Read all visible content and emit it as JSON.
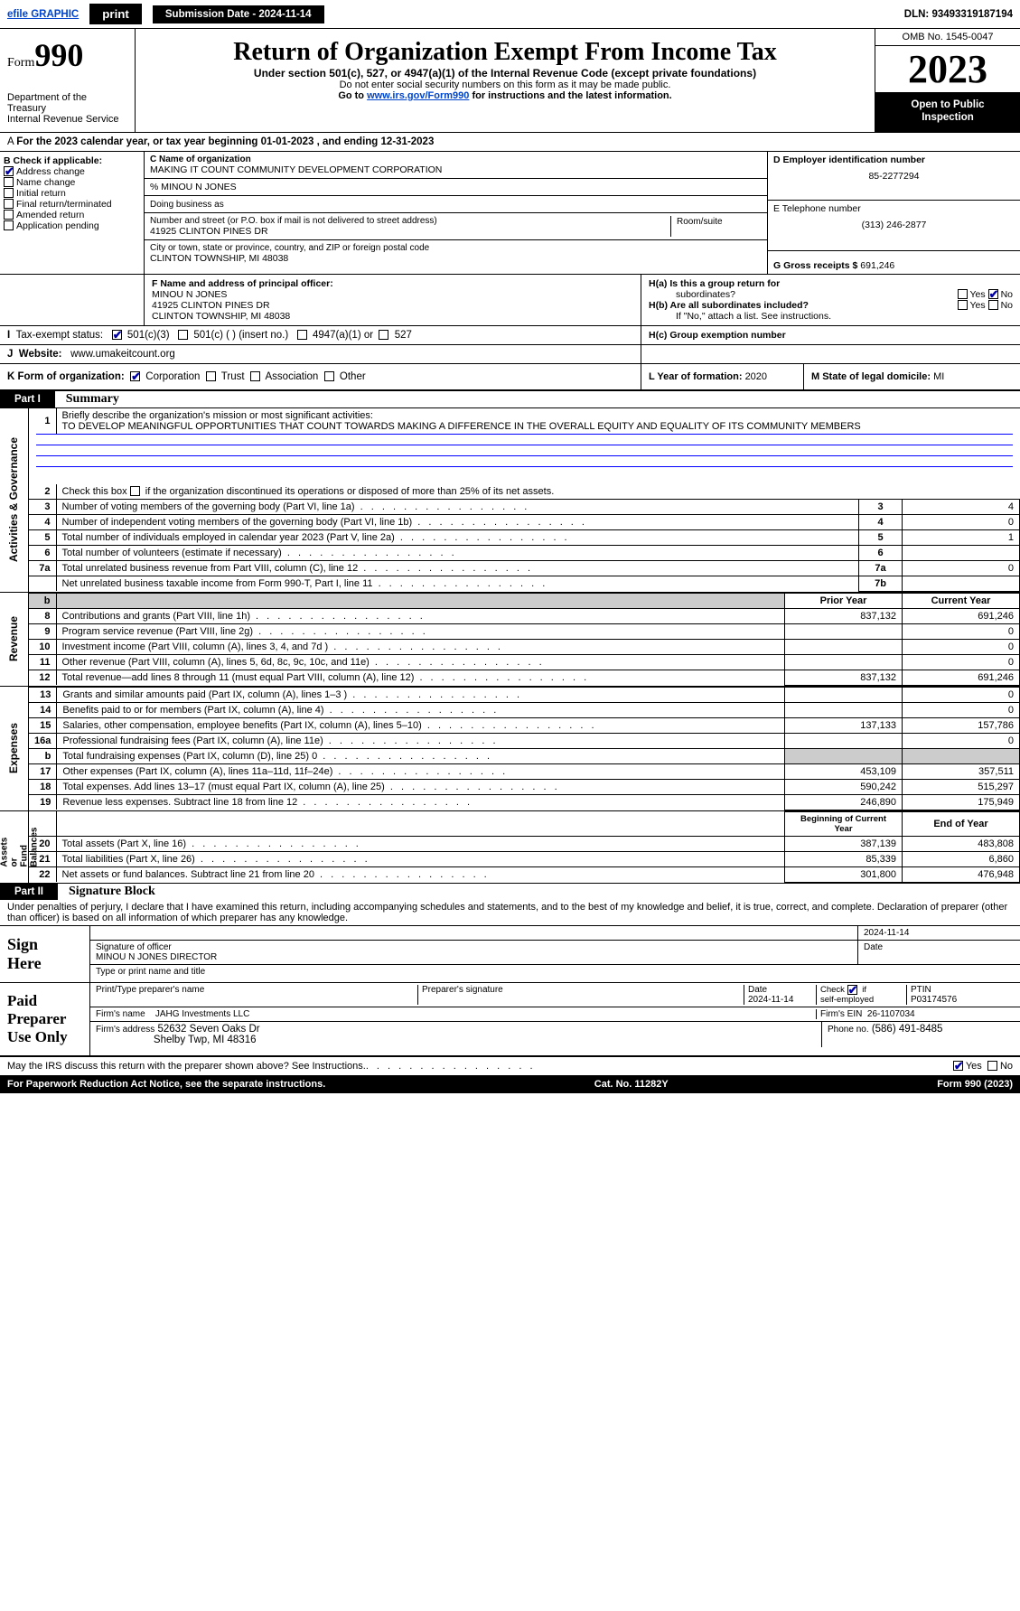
{
  "topbar": {
    "efile_link": "efile GRAPHIC",
    "print_btn": "print",
    "submission_label": "Submission Date - 2024-11-14",
    "dln": "DLN: 93493319187194"
  },
  "header": {
    "form_label": "Form",
    "form_num": "990",
    "dept": "Department of the Treasury\nInternal Revenue Service",
    "title": "Return of Organization Exempt From Income Tax",
    "subtitle": "Under section 501(c), 527, or 4947(a)(1) of the Internal Revenue Code (except private foundations)",
    "ssn_note": "Do not enter social security numbers on this form as it may be made public.",
    "goto": "Go to ",
    "goto_link": "www.irs.gov/Form990",
    "goto_after": " for instructions and the latest information.",
    "omb": "OMB No. 1545-0047",
    "year": "2023",
    "open_public": "Open to Public\nInspection"
  },
  "line_a": "For the 2023 calendar year, or tax year beginning 01-01-2023    , and ending 12-31-2023",
  "b_checks": {
    "label": "B Check if applicable:",
    "addr": "Address change",
    "name": "Name change",
    "init": "Initial return",
    "final": "Final return/terminated",
    "amend": "Amended return",
    "app": "Application pending"
  },
  "c_block": {
    "name_label": "C Name of organization",
    "org_name": "MAKING IT COUNT COMMUNITY DEVELOPMENT CORPORATION",
    "care_of": "% MINOU N JONES",
    "dba_label": "Doing business as",
    "street_label": "Number and street (or P.O. box if mail is not delivered to street address)",
    "street": "41925 CLINTON PINES DR",
    "room_label": "Room/suite",
    "city_label": "City or town, state or province, country, and ZIP or foreign postal code",
    "city": "CLINTON TOWNSHIP, MI  48038"
  },
  "d_block": {
    "label": "D Employer identification number",
    "ein": "85-2277294"
  },
  "e_block": {
    "label": "E Telephone number",
    "phone": "(313) 246-2877"
  },
  "g_block": {
    "label": "G Gross receipts $ ",
    "amount": "691,246"
  },
  "f_block": {
    "label": "F  Name and address of principal officer:",
    "name": "MINOU N JONES",
    "addr1": "41925 CLINTON PINES DR",
    "addr2": "CLINTON TOWNSHIP, MI  48038"
  },
  "h_block": {
    "ha": "H(a)  Is this a group return for",
    "ha2": "subordinates?",
    "hb": "H(b)  Are all subordinates included?",
    "hb_note": "If \"No,\" attach a list. See instructions.",
    "hc": "H(c)  Group exemption number ",
    "yes": "Yes",
    "no": "No"
  },
  "i_row": {
    "label": "I",
    "status": "Tax-exempt status:",
    "c3": "501(c)(3)",
    "c": "501(c) (  ) (insert no.)",
    "a1": "4947(a)(1) or",
    "s527": "527"
  },
  "j_row": {
    "label": "J",
    "website_label": "Website: ",
    "website": "www.umakeitcount.org"
  },
  "k_row": {
    "label": "K Form of organization:",
    "corp": "Corporation",
    "trust": "Trust",
    "assoc": "Association",
    "other": "Other"
  },
  "l_row": {
    "label": "L Year of formation: ",
    "year": "2020"
  },
  "m_row": {
    "label": "M State of legal domicile: ",
    "state": "MI"
  },
  "part1": {
    "hdr": "Part I",
    "title": "Summary"
  },
  "summary": {
    "q1_label": "1",
    "q1": "Briefly describe the organization's mission or most significant activities:",
    "mission": "TO DEVELOP MEANINGFUL OPPORTUNITIES THAT COUNT TOWARDS MAKING A DIFFERENCE IN THE OVERALL EQUITY AND EQUALITY OF ITS COMMUNITY MEMBERS",
    "q2_label": "2",
    "q2": "Check this box         if the organization discontinued its operations or disposed of more than 25% of its net assets.",
    "rows_ag": [
      {
        "n": "3",
        "t": "Number of voting members of the governing body (Part VI, line 1a)",
        "b": "3",
        "v": "4"
      },
      {
        "n": "4",
        "t": "Number of independent voting members of the governing body (Part VI, line 1b)",
        "b": "4",
        "v": "0"
      },
      {
        "n": "5",
        "t": "Total number of individuals employed in calendar year 2023 (Part V, line 2a)",
        "b": "5",
        "v": "1"
      },
      {
        "n": "6",
        "t": "Total number of volunteers (estimate if necessary)",
        "b": "6",
        "v": ""
      },
      {
        "n": "7a",
        "t": "Total unrelated business revenue from Part VIII, column (C), line 12",
        "b": "7a",
        "v": "0"
      },
      {
        "n": "",
        "t": "Net unrelated business taxable income from Form 990-T, Part I, line 11",
        "b": "7b",
        "v": ""
      }
    ],
    "prior_hdr": "Prior Year",
    "current_hdr": "Current Year",
    "revenue_rows": [
      {
        "n": "8",
        "t": "Contributions and grants (Part VIII, line 1h)",
        "p": "837,132",
        "c": "691,246"
      },
      {
        "n": "9",
        "t": "Program service revenue (Part VIII, line 2g)",
        "p": "",
        "c": "0"
      },
      {
        "n": "10",
        "t": "Investment income (Part VIII, column (A), lines 3, 4, and 7d )",
        "p": "",
        "c": "0"
      },
      {
        "n": "11",
        "t": "Other revenue (Part VIII, column (A), lines 5, 6d, 8c, 9c, 10c, and 11e)",
        "p": "",
        "c": "0"
      },
      {
        "n": "12",
        "t": "Total revenue—add lines 8 through 11 (must equal Part VIII, column (A), line 12)",
        "p": "837,132",
        "c": "691,246"
      }
    ],
    "expense_rows": [
      {
        "n": "13",
        "t": "Grants and similar amounts paid (Part IX, column (A), lines 1–3 )",
        "p": "",
        "c": "0"
      },
      {
        "n": "14",
        "t": "Benefits paid to or for members (Part IX, column (A), line 4)",
        "p": "",
        "c": "0"
      },
      {
        "n": "15",
        "t": "Salaries, other compensation, employee benefits (Part IX, column (A), lines 5–10)",
        "p": "137,133",
        "c": "157,786"
      },
      {
        "n": "16a",
        "t": "Professional fundraising fees (Part IX, column (A), line 11e)",
        "p": "",
        "c": "0"
      },
      {
        "n": "b",
        "t": "Total fundraising expenses (Part IX, column (D), line 25) 0",
        "p": "shade",
        "c": "shade"
      },
      {
        "n": "17",
        "t": "Other expenses (Part IX, column (A), lines 11a–11d, 11f–24e)",
        "p": "453,109",
        "c": "357,511"
      },
      {
        "n": "18",
        "t": "Total expenses. Add lines 13–17 (must equal Part IX, column (A), line 25)",
        "p": "590,242",
        "c": "515,297"
      },
      {
        "n": "19",
        "t": "Revenue less expenses. Subtract line 18 from line 12",
        "p": "246,890",
        "c": "175,949"
      }
    ],
    "na_hdr1": "Beginning of Current Year",
    "na_hdr2": "End of Year",
    "na_rows": [
      {
        "n": "20",
        "t": "Total assets (Part X, line 16)",
        "p": "387,139",
        "c": "483,808"
      },
      {
        "n": "21",
        "t": "Total liabilities (Part X, line 26)",
        "p": "85,339",
        "c": "6,860"
      },
      {
        "n": "22",
        "t": "Net assets or fund balances. Subtract line 21 from line 20",
        "p": "301,800",
        "c": "476,948"
      }
    ]
  },
  "side_labels": {
    "ag": "Activities & Governance",
    "rev": "Revenue",
    "exp": "Expenses",
    "na": "Net Assets or\nFund Balances"
  },
  "part2": {
    "hdr": "Part II",
    "title": "Signature Block",
    "decl": "Under penalties of perjury, I declare that I have examined this return, including accompanying schedules and statements, and to the best of my knowledge and belief, it is true, correct, and complete. Declaration of preparer (other than officer) is based on all information of which preparer has any knowledge."
  },
  "sign": {
    "here": "Sign\nHere",
    "sig_officer": "Signature of officer",
    "officer": "MINOU N JONES  DIRECTOR",
    "type_label": "Type or print name and title",
    "date_col": "Date",
    "date": "2024-11-14"
  },
  "preparer": {
    "here": "Paid\nPreparer\nUse Only",
    "name_label": "Print/Type preparer's name",
    "sig_label": "Preparer's signature",
    "date_label": "Date",
    "date": "2024-11-14",
    "check_label": "Check",
    "if_label": "if\nself-employed",
    "ptin_label": "PTIN",
    "ptin": "P03174576",
    "firm_name_label": "Firm's name",
    "firm_name": "JAHG Investments LLC",
    "firm_ein_label": "Firm's EIN",
    "firm_ein": "26-1107034",
    "firm_addr_label": "Firm's address",
    "firm_addr1": "52632 Seven Oaks Dr",
    "firm_addr2": "Shelby Twp, MI  48316",
    "phone_label": "Phone no.",
    "phone": "(586) 491-8485"
  },
  "footer": {
    "discuss": "May the IRS discuss this return with the preparer shown above? See Instructions.",
    "notice": "For Paperwork Reduction Act Notice, see the separate instructions.",
    "cat": "Cat. No. 11282Y",
    "form": "Form 990 (2023)",
    "yes": "Yes",
    "no": "No"
  }
}
